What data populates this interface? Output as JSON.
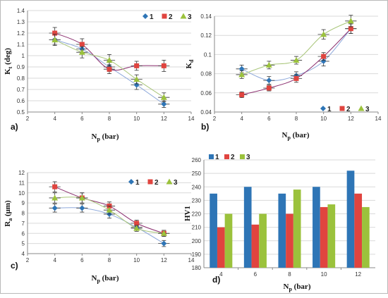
{
  "colors": {
    "s1": "#2e75b6",
    "s2": "#e0443f",
    "s3": "#9bc23c",
    "grid": "#d9d9d9",
    "axis": "#888888",
    "curve1": "#8ea9db",
    "curve2": "#8b2f6f",
    "curve3": "#a9c67a"
  },
  "chart_data": [
    {
      "id": "a",
      "type": "scatter",
      "panel_label": "a)",
      "xlabel": "N",
      "xlabel_sub": "p",
      "xlabel_unit": "(bar)",
      "ylabel": "K",
      "ylabel_sub": "t",
      "ylabel_unit": "(deg)",
      "xlim": [
        2,
        14
      ],
      "ylim": [
        0.5,
        1.4
      ],
      "xticks": [
        2,
        4,
        6,
        8,
        10,
        12,
        14
      ],
      "yticks": [
        0.5,
        0.6,
        0.7,
        0.8,
        0.9,
        1.0,
        1.1,
        1.2,
        1.3,
        1.4
      ],
      "ytick_labels": [
        "0.5",
        "0.6",
        "0.7",
        "0.8",
        "0.9",
        "1",
        "1.1",
        "1.2",
        "1.3",
        "1.4"
      ],
      "xtick_labels": [
        "2",
        "4",
        "6",
        "8",
        "10",
        "12",
        "14"
      ],
      "grid": true,
      "legend": "top-right",
      "series": [
        {
          "name": "1",
          "marker": "diamond",
          "x": [
            4,
            6,
            8,
            10,
            12
          ],
          "y": [
            1.14,
            1.06,
            0.9,
            0.74,
            0.57
          ],
          "err": [
            0.04,
            0.04,
            0.04,
            0.04,
            0.03
          ],
          "curve": [
            1.14,
            1.06,
            0.9,
            0.74,
            0.57
          ]
        },
        {
          "name": "2",
          "marker": "square",
          "x": [
            4,
            6,
            8,
            10,
            12
          ],
          "y": [
            1.2,
            1.1,
            0.88,
            0.91,
            0.91
          ],
          "err": [
            0.05,
            0.05,
            0.04,
            0.04,
            0.05
          ],
          "curve": [
            1.2,
            1.1,
            0.88,
            0.91,
            0.91
          ]
        },
        {
          "name": "3",
          "marker": "triangle",
          "x": [
            4,
            6,
            8,
            10,
            12
          ],
          "y": [
            1.14,
            1.03,
            0.96,
            0.79,
            0.63
          ],
          "err": [
            0.05,
            0.05,
            0.05,
            0.04,
            0.04
          ],
          "curve": [
            1.14,
            1.03,
            0.96,
            0.79,
            0.63
          ]
        }
      ]
    },
    {
      "id": "b",
      "type": "scatter",
      "panel_label": "b)",
      "xlabel": "N",
      "xlabel_sub": "p",
      "xlabel_unit": "(bar)",
      "ylabel": "K",
      "ylabel_sub": "d",
      "ylabel_unit": "",
      "xlim": [
        2,
        14
      ],
      "ylim": [
        0.04,
        0.14
      ],
      "xticks": [
        2,
        4,
        6,
        8,
        10,
        12,
        14
      ],
      "yticks": [
        0.04,
        0.06,
        0.08,
        0.1,
        0.12,
        0.14
      ],
      "ytick_labels": [
        "0.04",
        "0.06",
        "0.08",
        "0.1",
        "0.12",
        "0.14"
      ],
      "xtick_labels": [
        "2",
        "4",
        "6",
        "8",
        "10",
        "12",
        "14"
      ],
      "grid": true,
      "legend": "bottom-right",
      "series": [
        {
          "name": "1",
          "marker": "diamond",
          "x": [
            4,
            6,
            8,
            10,
            12
          ],
          "y": [
            0.085,
            0.073,
            0.078,
            0.093,
            0.127
          ],
          "err": [
            0.004,
            0.004,
            0.004,
            0.005,
            0.005
          ],
          "curve": [
            0.085,
            0.073,
            0.078,
            0.093,
            0.127
          ]
        },
        {
          "name": "2",
          "marker": "square",
          "x": [
            4,
            6,
            8,
            10,
            12
          ],
          "y": [
            0.058,
            0.065,
            0.075,
            0.098,
            0.127
          ],
          "err": [
            0.003,
            0.003,
            0.004,
            0.004,
            0.005
          ],
          "curve": [
            0.058,
            0.065,
            0.075,
            0.098,
            0.127
          ]
        },
        {
          "name": "3",
          "marker": "triangle",
          "x": [
            4,
            6,
            8,
            10,
            12
          ],
          "y": [
            0.079,
            0.089,
            0.094,
            0.121,
            0.135
          ],
          "err": [
            0.004,
            0.004,
            0.004,
            0.005,
            0.006
          ],
          "curve": [
            0.079,
            0.089,
            0.094,
            0.121,
            0.135
          ]
        }
      ]
    },
    {
      "id": "c",
      "type": "scatter",
      "panel_label": "c)",
      "xlabel": "N",
      "xlabel_sub": "p",
      "xlabel_unit": "(bar)",
      "ylabel": "R",
      "ylabel_sub": "a",
      "ylabel_unit": "(μm)",
      "xlim": [
        2,
        14
      ],
      "ylim": [
        4,
        12
      ],
      "xticks": [
        2,
        4,
        6,
        8,
        10,
        12,
        14
      ],
      "yticks": [
        4,
        5,
        6,
        7,
        8,
        9,
        10,
        11,
        12
      ],
      "ytick_labels": [
        "4",
        "5",
        "6",
        "7",
        "8",
        "9",
        "10",
        "11",
        "12"
      ],
      "xtick_labels": [
        "2",
        "4",
        "6",
        "8",
        "10",
        "12",
        "14"
      ],
      "grid": true,
      "legend": "top-right",
      "series": [
        {
          "name": "1",
          "marker": "diamond",
          "x": [
            4,
            6,
            8,
            10,
            12
          ],
          "y": [
            8.5,
            8.5,
            7.9,
            6.6,
            5.0
          ],
          "err": [
            0.4,
            0.4,
            0.4,
            0.3,
            0.3
          ],
          "curve": [
            8.5,
            8.5,
            7.9,
            6.6,
            5.0
          ]
        },
        {
          "name": "2",
          "marker": "square",
          "x": [
            4,
            6,
            8,
            10,
            12
          ],
          "y": [
            10.6,
            9.5,
            8.7,
            7.0,
            6.0
          ],
          "err": [
            0.5,
            0.5,
            0.4,
            0.3,
            0.3
          ],
          "curve": [
            10.6,
            9.5,
            8.7,
            7.0,
            6.0
          ]
        },
        {
          "name": "3",
          "marker": "triangle",
          "x": [
            4,
            6,
            8,
            10,
            12
          ],
          "y": [
            9.5,
            9.5,
            8.3,
            6.5,
            6.0
          ],
          "err": [
            0.5,
            0.5,
            0.4,
            0.3,
            0.3
          ],
          "curve": [
            9.5,
            9.5,
            8.3,
            6.5,
            6.0
          ]
        }
      ]
    },
    {
      "id": "d",
      "type": "bar",
      "panel_label": "d)",
      "xlabel": "N",
      "xlabel_sub": "p",
      "xlabel_unit": "(bar)",
      "ylabel": "HV1",
      "ylim": [
        180,
        260
      ],
      "yticks": [
        180,
        190,
        200,
        210,
        220,
        230,
        240,
        250,
        260
      ],
      "ytick_labels": [
        "180",
        "190",
        "200",
        "210",
        "220",
        "230",
        "240",
        "250",
        "260"
      ],
      "categories": [
        "4",
        "6",
        "8",
        "10",
        "12"
      ],
      "grid": true,
      "legend": "top-left",
      "series": [
        {
          "name": "1",
          "values": [
            235,
            240,
            235,
            240,
            252
          ]
        },
        {
          "name": "2",
          "values": [
            210,
            212,
            220,
            225,
            235
          ]
        },
        {
          "name": "3",
          "values": [
            220,
            220,
            238,
            227,
            225
          ]
        }
      ]
    }
  ]
}
